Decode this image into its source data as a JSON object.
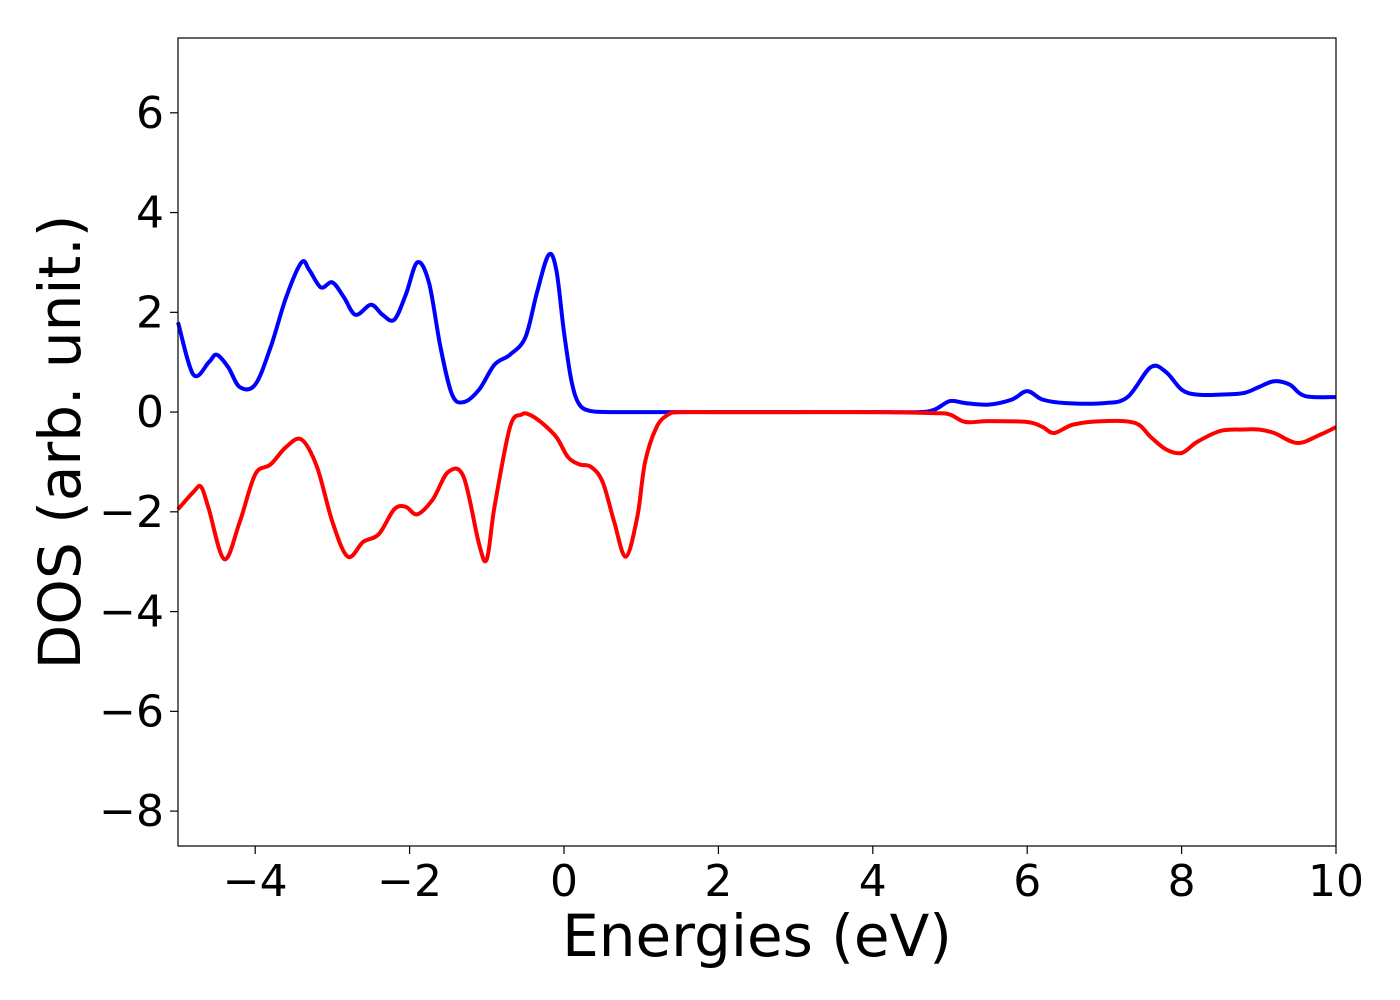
{
  "chart_data": {
    "type": "line",
    "title": "",
    "xlabel": "Energies (eV)",
    "ylabel": "DOS (arb. unit.)",
    "xlim": [
      -5,
      10
    ],
    "ylim": [
      -8.7,
      7.5
    ],
    "xticks": [
      -4,
      -2,
      0,
      2,
      4,
      6,
      8,
      10
    ],
    "yticks": [
      -8,
      -6,
      -4,
      -2,
      0,
      2,
      4,
      6
    ],
    "xtick_labels": [
      "−4",
      "−2",
      "0",
      "2",
      "4",
      "6",
      "8",
      "10"
    ],
    "ytick_labels": [
      "−8",
      "−6",
      "−4",
      "−2",
      "0",
      "2",
      "4",
      "6"
    ],
    "grid": false,
    "legend": false,
    "series": [
      {
        "color": "#0000ff",
        "x": [
          -5.0,
          -4.8,
          -4.6,
          -4.5,
          -4.35,
          -4.2,
          -4.0,
          -3.8,
          -3.6,
          -3.4,
          -3.3,
          -3.15,
          -3.0,
          -2.85,
          -2.7,
          -2.5,
          -2.35,
          -2.2,
          -2.05,
          -1.9,
          -1.75,
          -1.6,
          -1.45,
          -1.3,
          -1.1,
          -0.9,
          -0.7,
          -0.5,
          -0.35,
          -0.2,
          -0.1,
          0.0,
          0.1,
          0.2,
          0.35,
          0.6,
          1.0,
          2.0,
          3.0,
          4.0,
          4.6,
          4.8,
          5.0,
          5.2,
          5.5,
          5.8,
          6.0,
          6.2,
          6.5,
          7.0,
          7.3,
          7.6,
          7.8,
          8.0,
          8.2,
          8.5,
          8.8,
          9.0,
          9.2,
          9.4,
          9.6,
          10.0
        ],
        "y": [
          1.8,
          0.75,
          1.0,
          1.15,
          0.9,
          0.5,
          0.55,
          1.3,
          2.3,
          3.0,
          2.85,
          2.5,
          2.6,
          2.3,
          1.95,
          2.15,
          1.95,
          1.85,
          2.35,
          3.0,
          2.6,
          1.3,
          0.35,
          0.2,
          0.45,
          0.95,
          1.15,
          1.5,
          2.4,
          3.15,
          2.85,
          1.6,
          0.6,
          0.15,
          0.02,
          0.0,
          0.0,
          0.0,
          0.0,
          0.0,
          0.0,
          0.05,
          0.22,
          0.18,
          0.15,
          0.25,
          0.42,
          0.25,
          0.18,
          0.18,
          0.3,
          0.9,
          0.8,
          0.45,
          0.35,
          0.35,
          0.38,
          0.5,
          0.62,
          0.55,
          0.32,
          0.3
        ]
      },
      {
        "color": "#ff0000",
        "x": [
          -5.0,
          -4.8,
          -4.7,
          -4.6,
          -4.4,
          -4.2,
          -4.0,
          -3.8,
          -3.6,
          -3.4,
          -3.2,
          -3.0,
          -2.8,
          -2.6,
          -2.4,
          -2.2,
          -2.05,
          -1.9,
          -1.7,
          -1.5,
          -1.3,
          -1.1,
          -1.0,
          -0.9,
          -0.7,
          -0.55,
          -0.45,
          -0.3,
          -0.1,
          0.05,
          0.2,
          0.35,
          0.5,
          0.65,
          0.8,
          0.95,
          1.05,
          1.2,
          1.35,
          1.5,
          2.0,
          3.0,
          4.0,
          4.8,
          5.0,
          5.2,
          5.5,
          6.0,
          6.2,
          6.35,
          6.6,
          7.0,
          7.4,
          7.6,
          7.8,
          8.0,
          8.2,
          8.5,
          8.8,
          9.0,
          9.2,
          9.5,
          9.8,
          10.0
        ],
        "y": [
          -1.95,
          -1.6,
          -1.5,
          -1.95,
          -2.95,
          -2.2,
          -1.25,
          -1.05,
          -0.7,
          -0.55,
          -1.1,
          -2.2,
          -2.9,
          -2.6,
          -2.45,
          -1.95,
          -1.9,
          -2.05,
          -1.75,
          -1.2,
          -1.3,
          -2.65,
          -2.95,
          -1.9,
          -0.3,
          -0.05,
          -0.05,
          -0.2,
          -0.5,
          -0.9,
          -1.05,
          -1.1,
          -1.4,
          -2.2,
          -2.9,
          -2.1,
          -1.0,
          -0.3,
          -0.05,
          0.0,
          0.0,
          0.0,
          0.0,
          -0.02,
          -0.05,
          -0.2,
          -0.18,
          -0.2,
          -0.3,
          -0.42,
          -0.25,
          -0.18,
          -0.22,
          -0.5,
          -0.75,
          -0.82,
          -0.6,
          -0.38,
          -0.35,
          -0.35,
          -0.42,
          -0.62,
          -0.45,
          -0.3
        ]
      }
    ]
  }
}
